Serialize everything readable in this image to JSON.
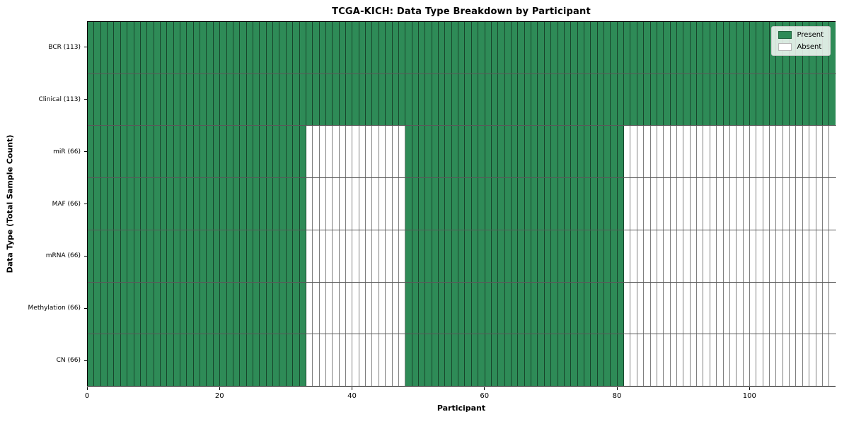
{
  "chart_data": {
    "type": "heatmap",
    "title": "TCGA-KICH: Data Type Breakdown by Participant",
    "xlabel": "Participant",
    "ylabel": "Data Type (Total Sample Count)",
    "xlim": [
      0,
      113
    ],
    "n_participants": 113,
    "x_ticks": [
      0,
      20,
      40,
      60,
      80,
      100
    ],
    "grid": false,
    "legend_position": "upper right",
    "colors": {
      "present": "#2e8b57",
      "absent": "#ffffff",
      "cell_edge": "rgba(0,0,0,0.5)",
      "plot_border": "#000000"
    },
    "categories": [
      "BCR (113)",
      "Clinical (113)",
      "miR (66)",
      "MAF (66)",
      "mRNA (66)",
      "Methylation (66)",
      "CN (66)"
    ],
    "rows": [
      {
        "label": "BCR (113)",
        "present_count": 113,
        "present_ranges": [
          [
            0,
            113
          ]
        ]
      },
      {
        "label": "Clinical (113)",
        "present_count": 113,
        "present_ranges": [
          [
            0,
            113
          ]
        ]
      },
      {
        "label": "miR (66)",
        "present_count": 66,
        "present_ranges": [
          [
            0,
            33
          ],
          [
            48,
            81
          ]
        ]
      },
      {
        "label": "MAF (66)",
        "present_count": 66,
        "present_ranges": [
          [
            0,
            33
          ],
          [
            48,
            81
          ]
        ]
      },
      {
        "label": "mRNA (66)",
        "present_count": 66,
        "present_ranges": [
          [
            0,
            33
          ],
          [
            48,
            81
          ]
        ]
      },
      {
        "label": "Methylation (66)",
        "present_count": 66,
        "present_ranges": [
          [
            0,
            33
          ],
          [
            48,
            81
          ]
        ]
      },
      {
        "label": "CN (66)",
        "present_count": 66,
        "present_ranges": [
          [
            0,
            33
          ],
          [
            48,
            81
          ]
        ]
      }
    ],
    "legend": [
      {
        "label": "Present",
        "color": "#2e8b57"
      },
      {
        "label": "Absent",
        "color": "#ffffff"
      }
    ]
  }
}
